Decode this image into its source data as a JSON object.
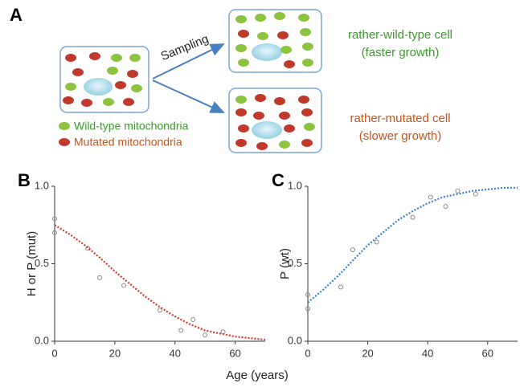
{
  "panel_a": {
    "label": "A",
    "sampling": "Sampling",
    "legend": [
      "Wild-type mitochondria",
      "Mutated mitochondria"
    ],
    "outcomes": [
      [
        "rather-wild-type cell",
        "(faster growth)"
      ],
      [
        "rather-mutated cell",
        "(slower growth)"
      ]
    ]
  },
  "x_label": "Age (years)",
  "chart_data": [
    {
      "type": "scatter",
      "panel": "B",
      "y_label": "H or P (mut)",
      "xlim": [
        0,
        70
      ],
      "xticks": [
        0,
        20,
        40,
        60
      ],
      "ylim": [
        0,
        1
      ],
      "yticks": [
        {
          "value": 0,
          "label": "0.0"
        },
        0.5,
        {
          "value": 1,
          "label": "1.0"
        }
      ],
      "series": [
        {
          "type": "scatter",
          "color": "#888888",
          "x": [
            0,
            0,
            11,
            15,
            23,
            35,
            42,
            46,
            50,
            56
          ],
          "values": [
            0.79,
            0.7,
            0.6,
            0.41,
            0.36,
            0.2,
            0.07,
            0.14,
            0.04,
            0.06
          ]
        },
        {
          "type": "line",
          "color": "#d03a2e",
          "x": [
            0,
            5,
            10,
            15,
            20,
            25,
            30,
            35,
            40,
            45,
            50,
            55,
            60,
            65,
            70
          ],
          "values": [
            0.75,
            0.69,
            0.62,
            0.54,
            0.45,
            0.37,
            0.29,
            0.22,
            0.16,
            0.11,
            0.07,
            0.05,
            0.03,
            0.02,
            0.01
          ]
        }
      ]
    },
    {
      "type": "scatter",
      "panel": "C",
      "y_label": "P (wt)",
      "xlim": [
        0,
        70
      ],
      "xticks": [
        0,
        20,
        40,
        60
      ],
      "ylim": [
        0,
        1
      ],
      "yticks": [
        {
          "value": 0,
          "label": "0.0"
        },
        0.5,
        {
          "value": 1,
          "label": "1.0"
        }
      ],
      "series": [
        {
          "type": "scatter",
          "color": "#888888",
          "x": [
            0,
            0,
            11,
            15,
            23,
            35,
            41,
            46,
            50,
            56
          ],
          "values": [
            0.3,
            0.21,
            0.35,
            0.59,
            0.64,
            0.8,
            0.93,
            0.87,
            0.97,
            0.95
          ]
        },
        {
          "type": "line",
          "color": "#3a7fd0",
          "x": [
            0,
            5,
            10,
            15,
            20,
            25,
            30,
            35,
            40,
            45,
            50,
            55,
            60,
            65,
            70
          ],
          "values": [
            0.25,
            0.33,
            0.42,
            0.52,
            0.62,
            0.7,
            0.78,
            0.84,
            0.89,
            0.93,
            0.95,
            0.97,
            0.98,
            0.99,
            0.99
          ]
        }
      ]
    }
  ]
}
